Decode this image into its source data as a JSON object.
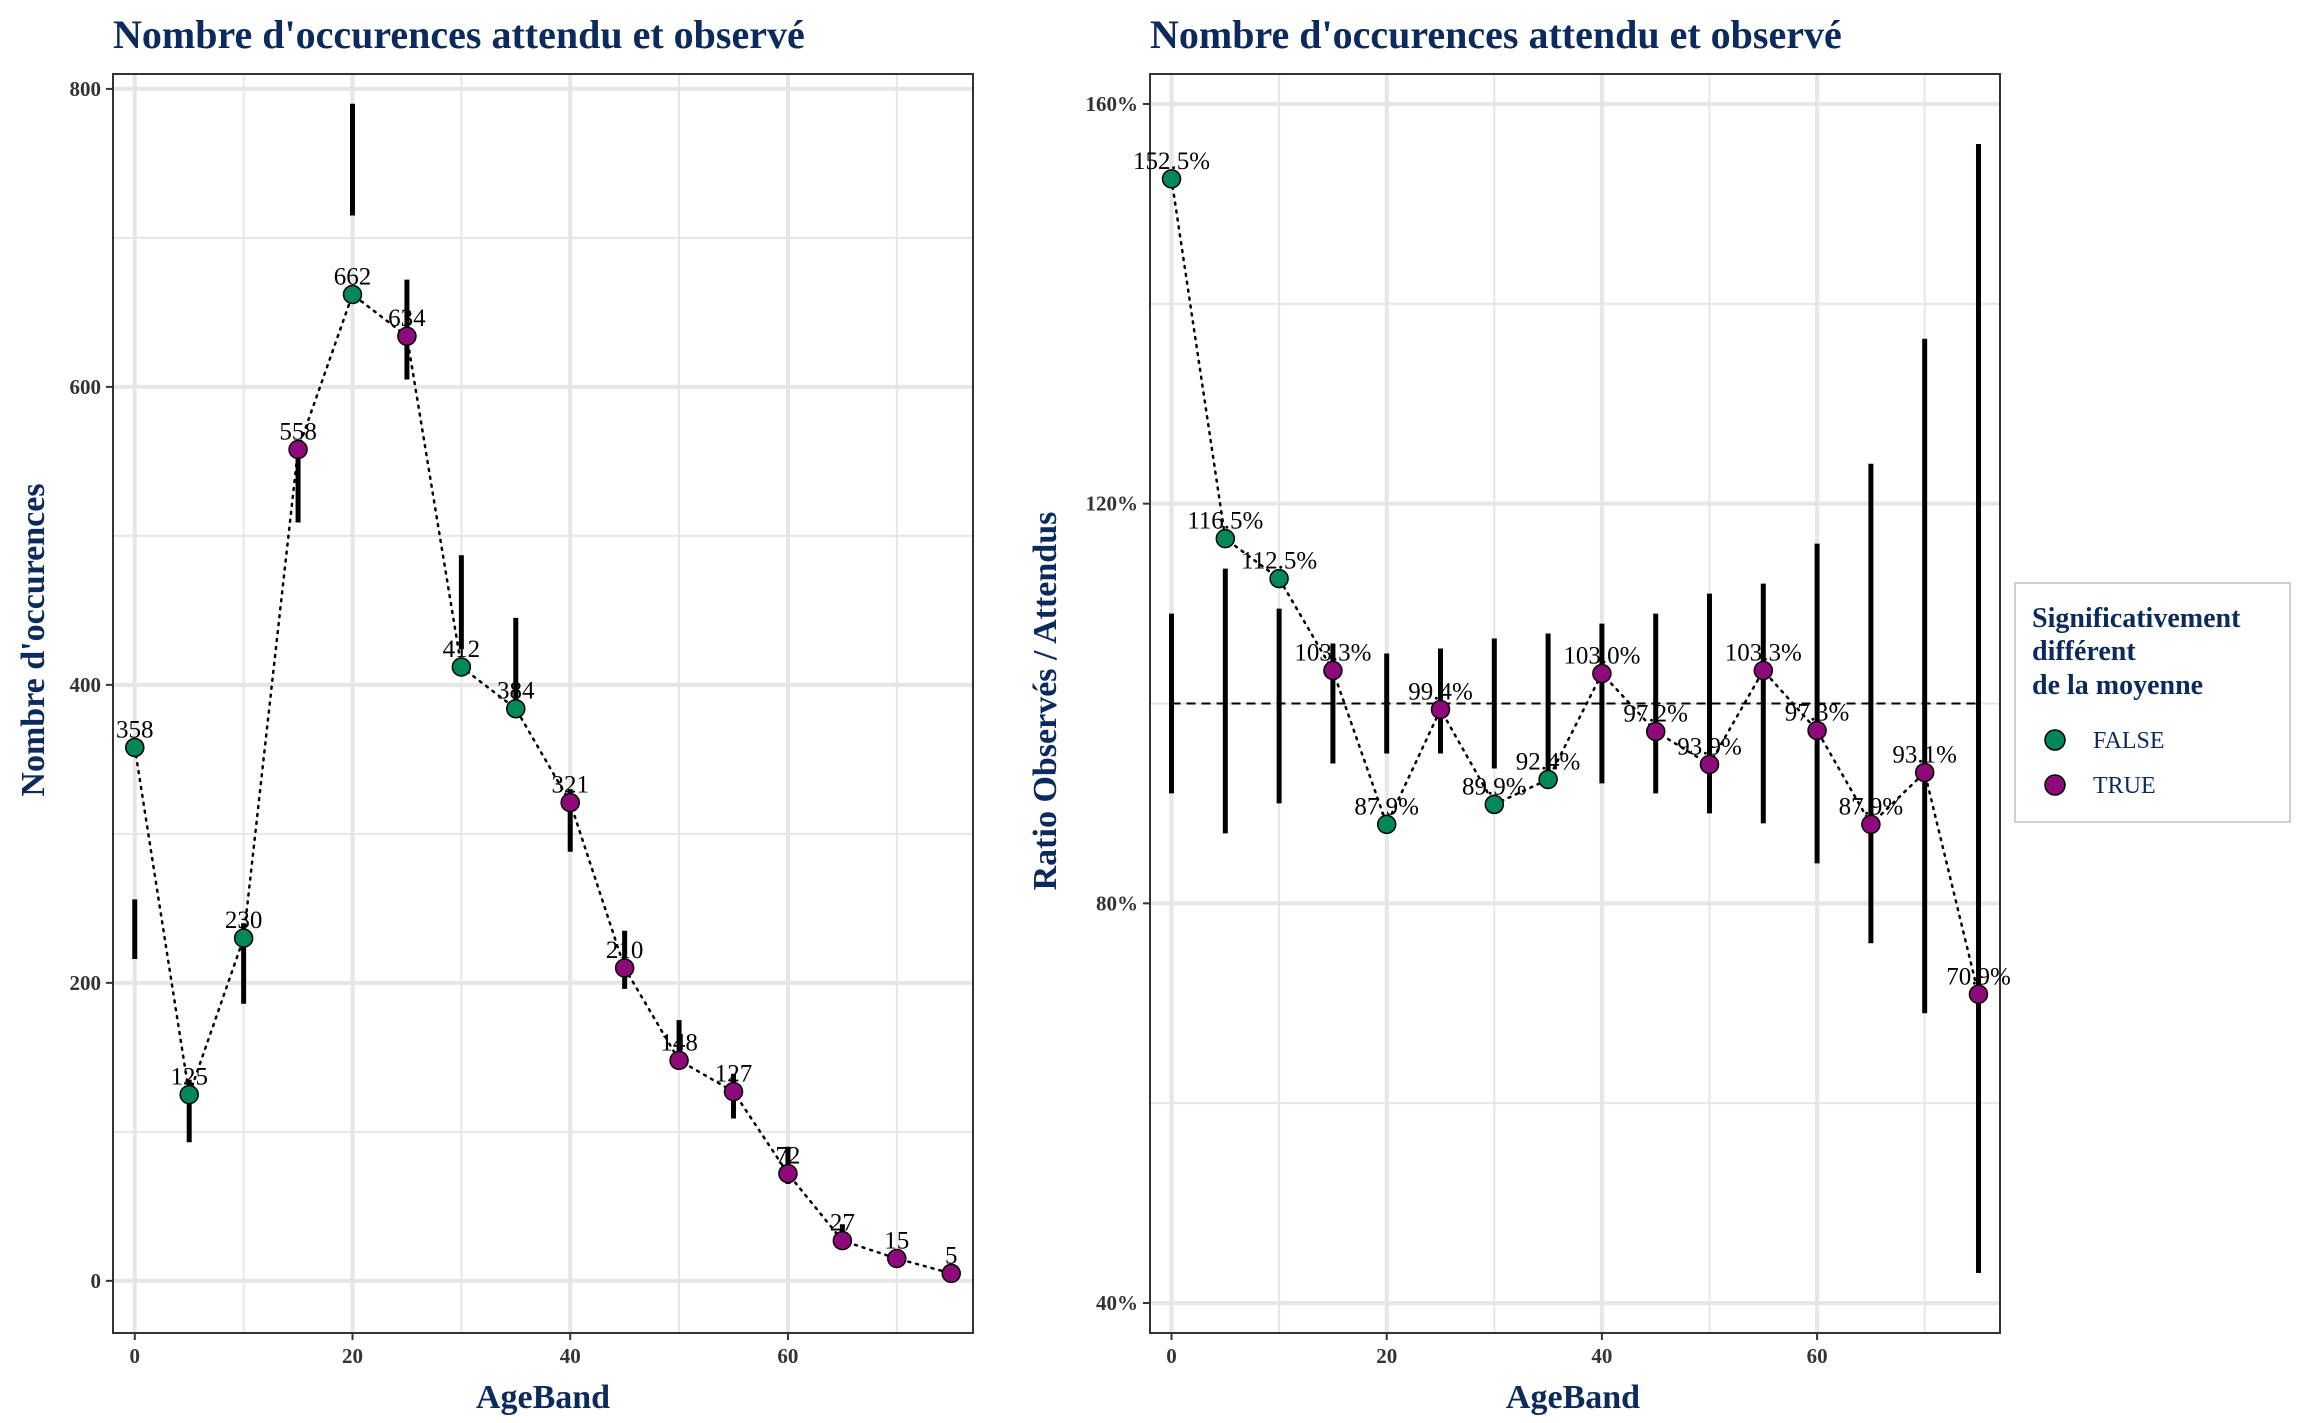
{
  "chart_data": [
    {
      "type": "scatter",
      "title": "Nombre d'occurences attendu et observé",
      "xlabel": "AgeBand",
      "ylabel": "Nombre d'occurences",
      "xlim": [
        -2,
        77
      ],
      "ylim": [
        -35,
        810
      ],
      "x_ticks": [
        0,
        20,
        40,
        60
      ],
      "y_ticks": [
        0,
        200,
        400,
        600,
        800
      ],
      "grid": true,
      "points": [
        {
          "x": 0,
          "y": 358,
          "label": "358",
          "significant": "FALSE",
          "err": [
            216,
            256
          ]
        },
        {
          "x": 5,
          "y": 125,
          "label": "125",
          "significant": "FALSE",
          "err": [
            93,
            135
          ]
        },
        {
          "x": 10,
          "y": 230,
          "label": "230",
          "significant": "FALSE",
          "err": [
            186,
            240
          ]
        },
        {
          "x": 15,
          "y": 558,
          "label": "558",
          "significant": "TRUE",
          "err": [
            509,
            560
          ]
        },
        {
          "x": 20,
          "y": 662,
          "label": "662",
          "significant": "FALSE",
          "err": [
            715,
            790
          ]
        },
        {
          "x": 25,
          "y": 634,
          "label": "634",
          "significant": "TRUE",
          "err": [
            605,
            672
          ]
        },
        {
          "x": 30,
          "y": 412,
          "label": "412",
          "significant": "FALSE",
          "err": [
            424,
            487
          ]
        },
        {
          "x": 35,
          "y": 384,
          "label": "384",
          "significant": "FALSE",
          "err": [
            385,
            445
          ]
        },
        {
          "x": 40,
          "y": 321,
          "label": "321",
          "significant": "TRUE",
          "err": [
            288,
            330
          ]
        },
        {
          "x": 45,
          "y": 210,
          "label": "210",
          "significant": "TRUE",
          "err": [
            196,
            235
          ]
        },
        {
          "x": 50,
          "y": 148,
          "label": "148",
          "significant": "TRUE",
          "err": [
            148,
            175
          ]
        },
        {
          "x": 55,
          "y": 127,
          "label": "127",
          "significant": "TRUE",
          "err": [
            109,
            139
          ]
        },
        {
          "x": 60,
          "y": 72,
          "label": "72",
          "significant": "TRUE",
          "err": [
            65,
            90
          ]
        },
        {
          "x": 65,
          "y": 27,
          "label": "27",
          "significant": "TRUE",
          "err": [
            22,
            38
          ]
        },
        {
          "x": 70,
          "y": 15,
          "label": "15",
          "significant": "TRUE",
          "err": [
            10,
            20
          ]
        },
        {
          "x": 75,
          "y": 5,
          "label": "5",
          "significant": "TRUE",
          "err": [
            2,
            10
          ]
        }
      ]
    },
    {
      "type": "scatter",
      "title": "Nombre d'occurences attendu et observé",
      "xlabel": "AgeBand",
      "ylabel": "Ratio Observés / Attendus",
      "xlim": [
        -2,
        77
      ],
      "ylim": [
        37,
        163
      ],
      "x_ticks": [
        0,
        20,
        40,
        60
      ],
      "y_ticks": [
        40,
        80,
        120,
        160
      ],
      "y_tick_labels": [
        "40%",
        "80%",
        "120%",
        "160%"
      ],
      "reference_line": 100,
      "grid": true,
      "points": [
        {
          "x": 0,
          "y": 152.5,
          "label": "152.5%",
          "significant": "FALSE",
          "err": [
            91,
            109
          ]
        },
        {
          "x": 5,
          "y": 116.5,
          "label": "116.5%",
          "significant": "FALSE",
          "err": [
            87,
            113.5
          ]
        },
        {
          "x": 10,
          "y": 112.5,
          "label": "112.5%",
          "significant": "FALSE",
          "err": [
            90,
            109.5
          ]
        },
        {
          "x": 15,
          "y": 103.3,
          "label": "103.3%",
          "significant": "TRUE",
          "err": [
            94,
            106
          ]
        },
        {
          "x": 20,
          "y": 87.9,
          "label": "87.9%",
          "significant": "FALSE",
          "err": [
            95,
            105
          ]
        },
        {
          "x": 25,
          "y": 99.4,
          "label": "99.4%",
          "significant": "TRUE",
          "err": [
            95,
            105.5
          ]
        },
        {
          "x": 30,
          "y": 89.9,
          "label": "89.9%",
          "significant": "FALSE",
          "err": [
            93.5,
            106.5
          ]
        },
        {
          "x": 35,
          "y": 92.4,
          "label": "92.4%",
          "significant": "FALSE",
          "err": [
            93,
            107
          ]
        },
        {
          "x": 40,
          "y": 103.0,
          "label": "103.0%",
          "significant": "TRUE",
          "err": [
            92,
            108
          ]
        },
        {
          "x": 45,
          "y": 97.2,
          "label": "97.2%",
          "significant": "TRUE",
          "err": [
            91,
            109
          ]
        },
        {
          "x": 50,
          "y": 93.9,
          "label": "93.9%",
          "significant": "TRUE",
          "err": [
            89,
            111
          ]
        },
        {
          "x": 55,
          "y": 103.3,
          "label": "103.3%",
          "significant": "TRUE",
          "err": [
            88,
            112
          ]
        },
        {
          "x": 60,
          "y": 97.3,
          "label": "97.3%",
          "significant": "TRUE",
          "err": [
            84,
            116
          ]
        },
        {
          "x": 65,
          "y": 87.9,
          "label": "87.9%",
          "significant": "TRUE",
          "err": [
            76,
            124
          ]
        },
        {
          "x": 70,
          "y": 93.1,
          "label": "93.1%",
          "significant": "TRUE",
          "err": [
            69,
            136.5
          ]
        },
        {
          "x": 75,
          "y": 70.9,
          "label": "70.9%",
          "significant": "TRUE",
          "err": [
            43,
            156
          ]
        }
      ]
    }
  ],
  "legend": {
    "title_lines": [
      "Significativement",
      "différent",
      "de la moyenne"
    ],
    "entries": [
      {
        "key": "FALSE",
        "label": "FALSE",
        "color": "#00875a"
      },
      {
        "key": "TRUE",
        "label": "TRUE",
        "color": "#8e0a7a"
      }
    ]
  },
  "colors": {
    "title": "#0d2a5c",
    "grid": "#e6e6e6",
    "panel_border": "#333333",
    "errorbar": "#000000",
    "path": "#000000"
  }
}
